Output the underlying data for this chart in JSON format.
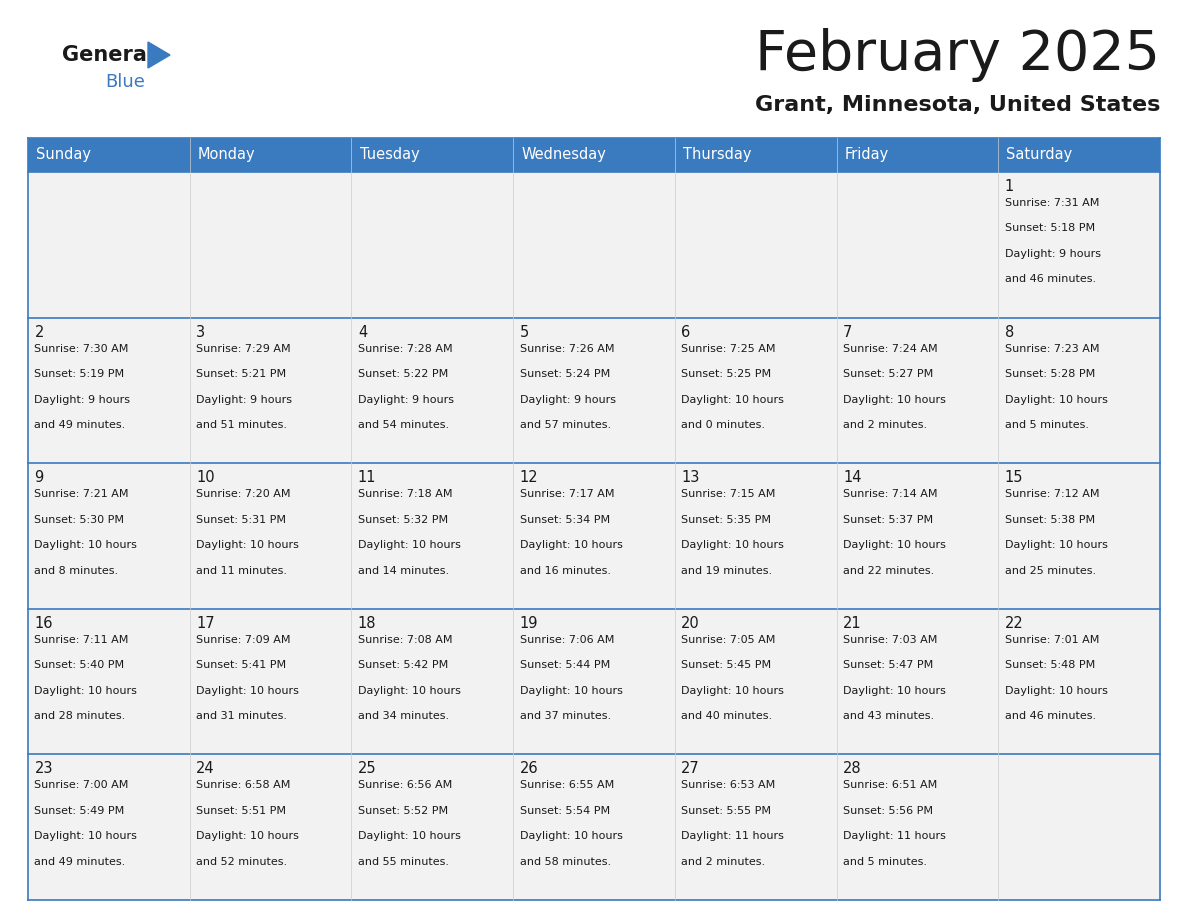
{
  "title": "February 2025",
  "subtitle": "Grant, Minnesota, United States",
  "header_bg": "#3a7abf",
  "header_text": "#ffffff",
  "cell_bg": "#f2f2f2",
  "border_color": "#3a7abf",
  "text_color": "#1a1a1a",
  "day_headers": [
    "Sunday",
    "Monday",
    "Tuesday",
    "Wednesday",
    "Thursday",
    "Friday",
    "Saturday"
  ],
  "days": [
    {
      "day": 1,
      "col": 6,
      "row": 0,
      "sunrise": "7:31 AM",
      "sunset": "5:18 PM",
      "daylight_h": "9 hours",
      "daylight_m": "and 46 minutes."
    },
    {
      "day": 2,
      "col": 0,
      "row": 1,
      "sunrise": "7:30 AM",
      "sunset": "5:19 PM",
      "daylight_h": "9 hours",
      "daylight_m": "and 49 minutes."
    },
    {
      "day": 3,
      "col": 1,
      "row": 1,
      "sunrise": "7:29 AM",
      "sunset": "5:21 PM",
      "daylight_h": "9 hours",
      "daylight_m": "and 51 minutes."
    },
    {
      "day": 4,
      "col": 2,
      "row": 1,
      "sunrise": "7:28 AM",
      "sunset": "5:22 PM",
      "daylight_h": "9 hours",
      "daylight_m": "and 54 minutes."
    },
    {
      "day": 5,
      "col": 3,
      "row": 1,
      "sunrise": "7:26 AM",
      "sunset": "5:24 PM",
      "daylight_h": "9 hours",
      "daylight_m": "and 57 minutes."
    },
    {
      "day": 6,
      "col": 4,
      "row": 1,
      "sunrise": "7:25 AM",
      "sunset": "5:25 PM",
      "daylight_h": "10 hours",
      "daylight_m": "and 0 minutes."
    },
    {
      "day": 7,
      "col": 5,
      "row": 1,
      "sunrise": "7:24 AM",
      "sunset": "5:27 PM",
      "daylight_h": "10 hours",
      "daylight_m": "and 2 minutes."
    },
    {
      "day": 8,
      "col": 6,
      "row": 1,
      "sunrise": "7:23 AM",
      "sunset": "5:28 PM",
      "daylight_h": "10 hours",
      "daylight_m": "and 5 minutes."
    },
    {
      "day": 9,
      "col": 0,
      "row": 2,
      "sunrise": "7:21 AM",
      "sunset": "5:30 PM",
      "daylight_h": "10 hours",
      "daylight_m": "and 8 minutes."
    },
    {
      "day": 10,
      "col": 1,
      "row": 2,
      "sunrise": "7:20 AM",
      "sunset": "5:31 PM",
      "daylight_h": "10 hours",
      "daylight_m": "and 11 minutes."
    },
    {
      "day": 11,
      "col": 2,
      "row": 2,
      "sunrise": "7:18 AM",
      "sunset": "5:32 PM",
      "daylight_h": "10 hours",
      "daylight_m": "and 14 minutes."
    },
    {
      "day": 12,
      "col": 3,
      "row": 2,
      "sunrise": "7:17 AM",
      "sunset": "5:34 PM",
      "daylight_h": "10 hours",
      "daylight_m": "and 16 minutes."
    },
    {
      "day": 13,
      "col": 4,
      "row": 2,
      "sunrise": "7:15 AM",
      "sunset": "5:35 PM",
      "daylight_h": "10 hours",
      "daylight_m": "and 19 minutes."
    },
    {
      "day": 14,
      "col": 5,
      "row": 2,
      "sunrise": "7:14 AM",
      "sunset": "5:37 PM",
      "daylight_h": "10 hours",
      "daylight_m": "and 22 minutes."
    },
    {
      "day": 15,
      "col": 6,
      "row": 2,
      "sunrise": "7:12 AM",
      "sunset": "5:38 PM",
      "daylight_h": "10 hours",
      "daylight_m": "and 25 minutes."
    },
    {
      "day": 16,
      "col": 0,
      "row": 3,
      "sunrise": "7:11 AM",
      "sunset": "5:40 PM",
      "daylight_h": "10 hours",
      "daylight_m": "and 28 minutes."
    },
    {
      "day": 17,
      "col": 1,
      "row": 3,
      "sunrise": "7:09 AM",
      "sunset": "5:41 PM",
      "daylight_h": "10 hours",
      "daylight_m": "and 31 minutes."
    },
    {
      "day": 18,
      "col": 2,
      "row": 3,
      "sunrise": "7:08 AM",
      "sunset": "5:42 PM",
      "daylight_h": "10 hours",
      "daylight_m": "and 34 minutes."
    },
    {
      "day": 19,
      "col": 3,
      "row": 3,
      "sunrise": "7:06 AM",
      "sunset": "5:44 PM",
      "daylight_h": "10 hours",
      "daylight_m": "and 37 minutes."
    },
    {
      "day": 20,
      "col": 4,
      "row": 3,
      "sunrise": "7:05 AM",
      "sunset": "5:45 PM",
      "daylight_h": "10 hours",
      "daylight_m": "and 40 minutes."
    },
    {
      "day": 21,
      "col": 5,
      "row": 3,
      "sunrise": "7:03 AM",
      "sunset": "5:47 PM",
      "daylight_h": "10 hours",
      "daylight_m": "and 43 minutes."
    },
    {
      "day": 22,
      "col": 6,
      "row": 3,
      "sunrise": "7:01 AM",
      "sunset": "5:48 PM",
      "daylight_h": "10 hours",
      "daylight_m": "and 46 minutes."
    },
    {
      "day": 23,
      "col": 0,
      "row": 4,
      "sunrise": "7:00 AM",
      "sunset": "5:49 PM",
      "daylight_h": "10 hours",
      "daylight_m": "and 49 minutes."
    },
    {
      "day": 24,
      "col": 1,
      "row": 4,
      "sunrise": "6:58 AM",
      "sunset": "5:51 PM",
      "daylight_h": "10 hours",
      "daylight_m": "and 52 minutes."
    },
    {
      "day": 25,
      "col": 2,
      "row": 4,
      "sunrise": "6:56 AM",
      "sunset": "5:52 PM",
      "daylight_h": "10 hours",
      "daylight_m": "and 55 minutes."
    },
    {
      "day": 26,
      "col": 3,
      "row": 4,
      "sunrise": "6:55 AM",
      "sunset": "5:54 PM",
      "daylight_h": "10 hours",
      "daylight_m": "and 58 minutes."
    },
    {
      "day": 27,
      "col": 4,
      "row": 4,
      "sunrise": "6:53 AM",
      "sunset": "5:55 PM",
      "daylight_h": "11 hours",
      "daylight_m": "and 2 minutes."
    },
    {
      "day": 28,
      "col": 5,
      "row": 4,
      "sunrise": "6:51 AM",
      "sunset": "5:56 PM",
      "daylight_h": "11 hours",
      "daylight_m": "and 5 minutes."
    }
  ],
  "fig_width": 11.88,
  "fig_height": 9.18,
  "dpi": 100
}
